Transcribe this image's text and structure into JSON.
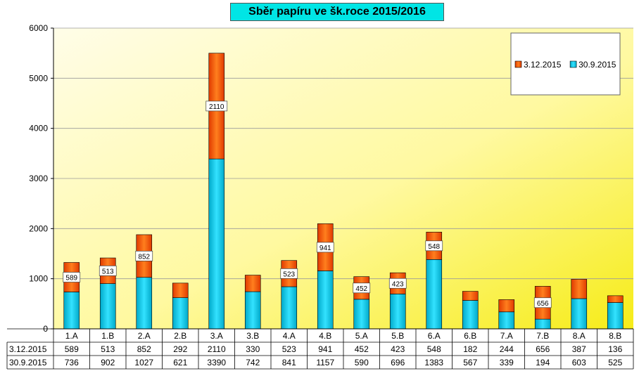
{
  "chart_data": {
    "type": "bar",
    "stacked": true,
    "title": "Sběr papíru ve šk.roce 2015/2016",
    "categories": [
      "1.A",
      "1.B",
      "2.A",
      "2.B",
      "3.A",
      "3.B",
      "4.A",
      "4.B",
      "5.A",
      "5.B",
      "6.A",
      "6.B",
      "7.A",
      "7.B",
      "8.A",
      "8.B"
    ],
    "series": [
      {
        "name": "30.9.2015",
        "color": "#1fd3ef",
        "values": [
          736,
          902,
          1027,
          621,
          3390,
          742,
          841,
          1157,
          590,
          696,
          1383,
          567,
          339,
          194,
          603,
          525
        ]
      },
      {
        "name": "3.12.2015",
        "color": "#f05a14",
        "values": [
          589,
          513,
          852,
          292,
          2110,
          330,
          523,
          941,
          452,
          423,
          548,
          182,
          244,
          656,
          387,
          136
        ]
      }
    ],
    "ylim": [
      0,
      6000
    ],
    "yticks": [
      "0",
      "1000",
      "2000",
      "3000",
      "4000",
      "5000",
      "6000"
    ],
    "grid": true,
    "legend": "top-right",
    "data_labels_on": "3.12.2015",
    "data_labels_categories": [
      "1.A",
      "1.B",
      "2.A",
      "3.A",
      "4.A",
      "4.B",
      "5.A",
      "5.B",
      "6.A",
      "7.B"
    ],
    "data_table": true,
    "plot_background": "yellow gradient"
  }
}
